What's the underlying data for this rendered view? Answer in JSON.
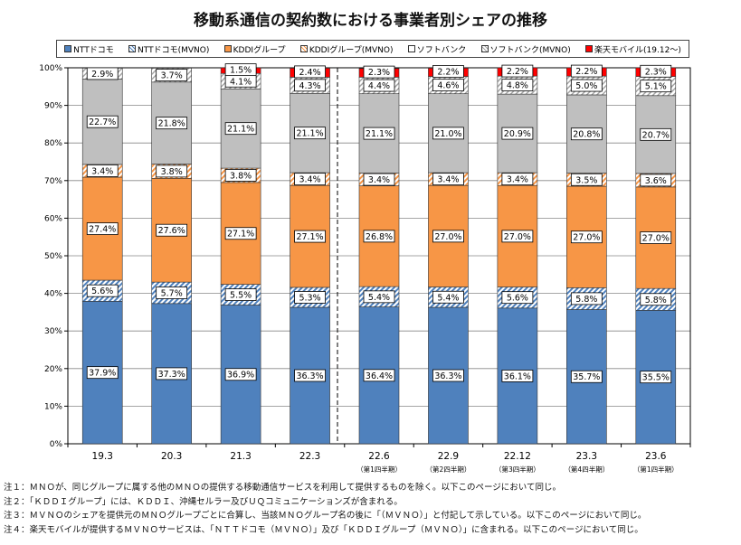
{
  "chart_data": {
    "type": "bar",
    "stacked": true,
    "title": "移動系通信の契約数における事業者別シェアの推移",
    "categories": [
      "19.3",
      "20.3",
      "21.3",
      "22.3",
      "22.6",
      "22.9",
      "22.12",
      "23.3",
      "23.6"
    ],
    "sublabels": [
      "",
      "",
      "",
      "",
      "（第1四半期）",
      "（第2四半期）",
      "（第3四半期）",
      "（第4四半期）",
      "（第1四半期）"
    ],
    "ylim": [
      0,
      100
    ],
    "yticks": [
      "0%",
      "10%",
      "20%",
      "30%",
      "40%",
      "50%",
      "60%",
      "70%",
      "80%",
      "90%",
      "100%"
    ],
    "series": [
      {
        "name": "NTTドコモ",
        "color": "#4f81bd",
        "pattern": false,
        "values": [
          37.9,
          37.3,
          36.9,
          36.3,
          36.4,
          36.3,
          36.1,
          35.7,
          35.5
        ]
      },
      {
        "name": "NTTドコモ(MVNO)",
        "color": "#4f81bd",
        "pattern": true,
        "values": [
          5.6,
          5.7,
          5.5,
          5.3,
          5.4,
          5.4,
          5.6,
          5.8,
          5.8
        ]
      },
      {
        "name": "KDDIグループ",
        "color": "#f79646",
        "pattern": false,
        "values": [
          27.4,
          27.6,
          27.1,
          27.1,
          26.8,
          27.0,
          27.0,
          27.0,
          27.0
        ]
      },
      {
        "name": "KDDIグループ(MVNO)",
        "color": "#f79646",
        "pattern": true,
        "values": [
          3.4,
          3.8,
          3.8,
          3.4,
          3.4,
          3.4,
          3.4,
          3.5,
          3.6
        ]
      },
      {
        "name": "ソフトバンク",
        "color": "#bfbfbf",
        "pattern": false,
        "values": [
          22.7,
          21.8,
          21.1,
          21.1,
          21.1,
          21.0,
          20.9,
          20.8,
          20.7
        ]
      },
      {
        "name": "ソフトバンク(MVNO)",
        "color": "#a6a6a6",
        "pattern": true,
        "values": [
          2.9,
          3.7,
          4.1,
          4.3,
          4.4,
          4.6,
          4.8,
          5.0,
          5.1
        ]
      },
      {
        "name": "楽天モバイル(19.12～)",
        "color": "#ff0000",
        "pattern": false,
        "values": [
          0,
          0,
          1.5,
          2.4,
          2.3,
          2.2,
          2.2,
          2.2,
          2.3
        ]
      }
    ]
  },
  "notes": [
    "注１：ＭＮＯが、同じグループに属する他のＭＮＯの提供する移動通信サービスを利用して提供するものを除く。以下このページにおいて同じ。",
    "注２：「ＫＤＤＩグループ」には、ＫＤＤＩ、沖縄セルラー及びＵＱコミュニケーションズが含まれる。",
    "注３：ＭＶＮＯのシェアを提供元のＭＮＯグループごとに合算し、当該ＭＮＯグループ名の後に「（ＭＶＮＯ）」と付記して示している。以下このページにおいて同じ。",
    "注４：楽天モバイルが提供するＭＶＮＯサービスは、「ＮＴＴドコモ（ＭＶＮＯ）」及び「ＫＤＤＩグループ（ＭＶＮＯ）」に含まれる。以下このページにおいて同じ。"
  ]
}
